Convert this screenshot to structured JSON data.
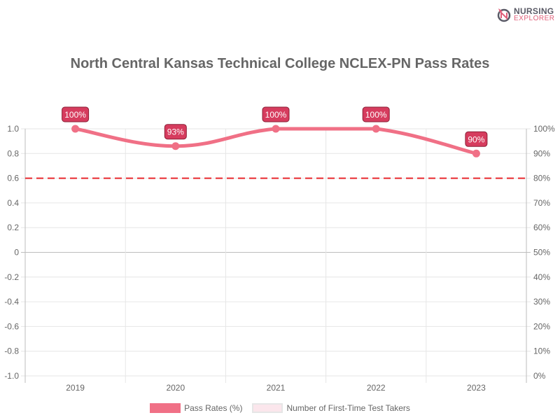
{
  "logo": {
    "line1": "NURSING",
    "line2": "EXPLORER"
  },
  "title": "North Central Kansas Technical College NCLEX-PN Pass Rates",
  "legend": [
    {
      "label": "Pass Rates (%)",
      "color": "#f07086"
    },
    {
      "label": "Number of First-Time Test Takers",
      "color": "#fbe6ec"
    }
  ],
  "colors": {
    "line": "#f07086",
    "label_bg": "#d63c5e",
    "benchmark": "#e8282e"
  },
  "chart_data": {
    "type": "line",
    "title": "North Central Kansas Technical College NCLEX-PN Pass Rates",
    "categories": [
      "2019",
      "2020",
      "2021",
      "2022",
      "2023"
    ],
    "series": [
      {
        "name": "Pass Rates (%)",
        "values": [
          100,
          93,
          100,
          100,
          90
        ],
        "axis": "right"
      },
      {
        "name": "Number of First-Time Test Takers",
        "values": [],
        "axis": "left"
      }
    ],
    "data_labels": [
      "100%",
      "93%",
      "100%",
      "100%",
      "90%"
    ],
    "benchmark": {
      "value": 80,
      "style": "dashed",
      "color": "#e8282e"
    },
    "left_axis": {
      "ticks": [
        "1.0",
        "0.8",
        "0.6",
        "0.4",
        "0.2",
        "0",
        "-0.2",
        "-0.4",
        "-0.6",
        "-0.8",
        "-1.0"
      ],
      "range": [
        -1.0,
        1.0
      ]
    },
    "right_axis": {
      "ticks": [
        "100%",
        "90%",
        "80%",
        "70%",
        "60%",
        "50%",
        "40%",
        "30%",
        "20%",
        "10%",
        "0%"
      ],
      "range": [
        0,
        100
      ]
    },
    "grid": true,
    "legend_position": "bottom"
  }
}
